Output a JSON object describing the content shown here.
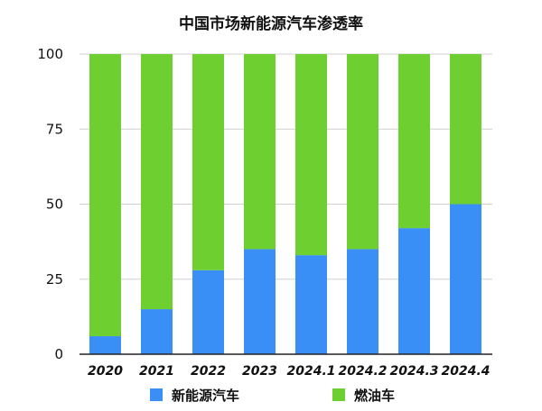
{
  "chart_data": {
    "type": "bar",
    "stacked": true,
    "title": "中国市场新能源汽车渗透率",
    "xlabel": "",
    "ylabel": "",
    "categories": [
      "2020",
      "2021",
      "2022",
      "2023",
      "2024.1",
      "2024.2",
      "2024.3",
      "2024.4"
    ],
    "series": [
      {
        "name": "新能源汽车",
        "color": "#3a8ff7",
        "values": [
          6,
          15,
          28,
          35,
          33,
          35,
          42,
          50
        ]
      },
      {
        "name": "燃油车",
        "color": "#6ecf30",
        "values": [
          94,
          85,
          72,
          65,
          67,
          65,
          58,
          50
        ]
      }
    ],
    "ylim": [
      0,
      100
    ],
    "yticks": [
      0,
      25,
      50,
      75,
      100
    ],
    "grid": true,
    "legend_position": "bottom"
  }
}
